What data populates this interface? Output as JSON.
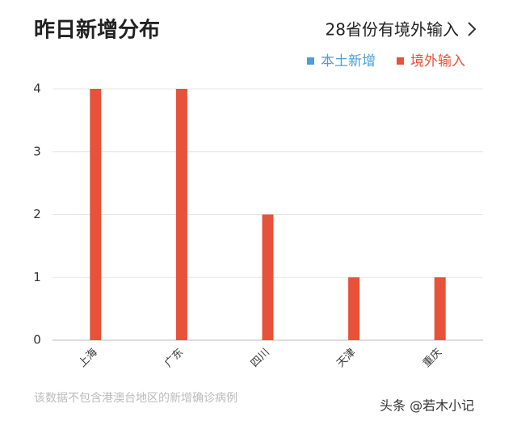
{
  "chart_data": {
    "type": "bar",
    "title": "昨日新增分布",
    "subtitle": "28省份有境外输入",
    "categories": [
      "上海",
      "广东",
      "四川",
      "天津",
      "重庆"
    ],
    "series": [
      {
        "name": "本土新增",
        "color": "#4a9fd8",
        "values": [
          0,
          0,
          0,
          0,
          0
        ]
      },
      {
        "name": "境外输入",
        "color": "#e8513a",
        "values": [
          4,
          4,
          2,
          1,
          1
        ]
      }
    ],
    "ylim": [
      0,
      4
    ],
    "yticks": [
      0,
      1,
      2,
      3,
      4
    ],
    "grid": true,
    "note": "该数据不包含港澳台地区的新增确诊病例"
  },
  "watermark": "头条 @若木小记"
}
